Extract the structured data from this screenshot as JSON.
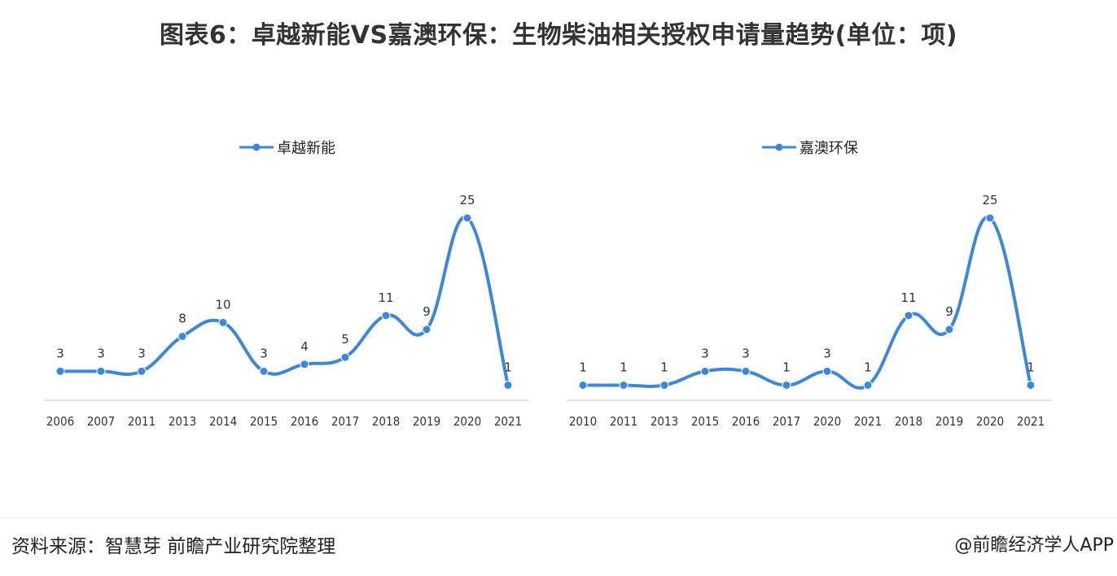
{
  "title": "图表6：卓越新能VS嘉澳环保：生物柴油相关授权申请量趋势(单位：项)",
  "footer": {
    "source": "资料来源：智慧芽 前瞻产业研究院整理",
    "credit": "@前瞻经济学人APP"
  },
  "colors": {
    "series": "#3a87dc",
    "axis": "#d9d9d9"
  },
  "chart_data": [
    {
      "type": "line",
      "legend_position": "top-left",
      "categories": [
        "2006",
        "2007",
        "2011",
        "2013",
        "2014",
        "2015",
        "2016",
        "2017",
        "2018",
        "2019",
        "2020",
        "2021"
      ],
      "series": [
        {
          "name": "卓越新能",
          "values": [
            3,
            3,
            3,
            8,
            10,
            3,
            4,
            5,
            11,
            9,
            25,
            1
          ]
        }
      ],
      "ylim": [
        0,
        25
      ],
      "grid": false
    },
    {
      "type": "line",
      "legend_position": "top-left",
      "categories": [
        "2010",
        "2011",
        "2013",
        "2015",
        "2016",
        "2017",
        "2020",
        "2021",
        "2018",
        "2019",
        "2020",
        "2021"
      ],
      "series": [
        {
          "name": "嘉澳环保",
          "values": [
            1,
            1,
            1,
            3,
            3,
            1,
            3,
            1,
            11,
            9,
            25,
            1
          ]
        }
      ],
      "ylim": [
        0,
        25
      ],
      "grid": false
    }
  ]
}
